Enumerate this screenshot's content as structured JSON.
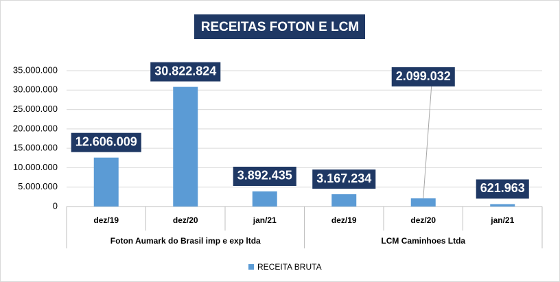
{
  "chart_data": {
    "type": "bar",
    "title": "RECEITAS FOTON E LCM",
    "categories": [
      "dez/19",
      "dez/20",
      "jan/21",
      "dez/19",
      "dez/20",
      "jan/21"
    ],
    "groups": [
      "Foton Aumark do Brasil imp e exp ltda",
      "LCM Caminhoes Ltda"
    ],
    "series": [
      {
        "name": "RECEITA BRUTA",
        "color": "#5b9bd5",
        "values": [
          12606009,
          30822824,
          3892435,
          3167234,
          2099032,
          621963
        ],
        "value_labels": [
          "12.606.009",
          "30.822.824",
          "3.892.435",
          "3.167.234",
          "2.099.032",
          "621.963"
        ]
      }
    ],
    "ylim": [
      0,
      35000000
    ],
    "yticks": [
      0,
      {
        "value": 5000000,
        "label": "5.000.000"
      },
      {
        "value": 10000000,
        "label": "10.000.000"
      },
      {
        "value": 15000000,
        "label": "15.000.000"
      },
      {
        "value": 20000000,
        "label": "20.000.000"
      },
      {
        "value": 25000000,
        "label": "25.000.000"
      },
      {
        "value": 30000000,
        "label": "30.000.000"
      },
      {
        "value": 35000000,
        "label": "35.000.000"
      }
    ],
    "grid": true,
    "legend": "bottom"
  }
}
